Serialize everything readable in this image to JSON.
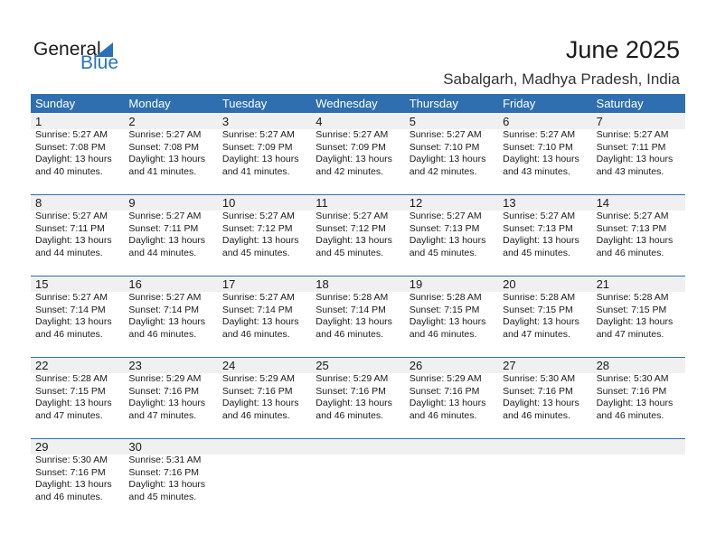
{
  "logo": {
    "general": "General",
    "blue": "Blue"
  },
  "title": "June 2025",
  "location": "Sabalgarh, Madhya Pradesh, India",
  "colors": {
    "header": "#2f6fb0",
    "brand_blue": "#2a72b5",
    "day_bar": "#f0f0f0"
  },
  "weekdays": [
    "Sunday",
    "Monday",
    "Tuesday",
    "Wednesday",
    "Thursday",
    "Friday",
    "Saturday"
  ],
  "weeks": [
    [
      {
        "day": "1",
        "sunrise": "Sunrise: 5:27 AM",
        "sunset": "Sunset: 7:08 PM",
        "daylight": "Daylight: 13 hours",
        "minutes": "and 40 minutes."
      },
      {
        "day": "2",
        "sunrise": "Sunrise: 5:27 AM",
        "sunset": "Sunset: 7:08 PM",
        "daylight": "Daylight: 13 hours",
        "minutes": "and 41 minutes."
      },
      {
        "day": "3",
        "sunrise": "Sunrise: 5:27 AM",
        "sunset": "Sunset: 7:09 PM",
        "daylight": "Daylight: 13 hours",
        "minutes": "and 41 minutes."
      },
      {
        "day": "4",
        "sunrise": "Sunrise: 5:27 AM",
        "sunset": "Sunset: 7:09 PM",
        "daylight": "Daylight: 13 hours",
        "minutes": "and 42 minutes."
      },
      {
        "day": "5",
        "sunrise": "Sunrise: 5:27 AM",
        "sunset": "Sunset: 7:10 PM",
        "daylight": "Daylight: 13 hours",
        "minutes": "and 42 minutes."
      },
      {
        "day": "6",
        "sunrise": "Sunrise: 5:27 AM",
        "sunset": "Sunset: 7:10 PM",
        "daylight": "Daylight: 13 hours",
        "minutes": "and 43 minutes."
      },
      {
        "day": "7",
        "sunrise": "Sunrise: 5:27 AM",
        "sunset": "Sunset: 7:11 PM",
        "daylight": "Daylight: 13 hours",
        "minutes": "and 43 minutes."
      }
    ],
    [
      {
        "day": "8",
        "sunrise": "Sunrise: 5:27 AM",
        "sunset": "Sunset: 7:11 PM",
        "daylight": "Daylight: 13 hours",
        "minutes": "and 44 minutes."
      },
      {
        "day": "9",
        "sunrise": "Sunrise: 5:27 AM",
        "sunset": "Sunset: 7:11 PM",
        "daylight": "Daylight: 13 hours",
        "minutes": "and 44 minutes."
      },
      {
        "day": "10",
        "sunrise": "Sunrise: 5:27 AM",
        "sunset": "Sunset: 7:12 PM",
        "daylight": "Daylight: 13 hours",
        "minutes": "and 45 minutes."
      },
      {
        "day": "11",
        "sunrise": "Sunrise: 5:27 AM",
        "sunset": "Sunset: 7:12 PM",
        "daylight": "Daylight: 13 hours",
        "minutes": "and 45 minutes."
      },
      {
        "day": "12",
        "sunrise": "Sunrise: 5:27 AM",
        "sunset": "Sunset: 7:13 PM",
        "daylight": "Daylight: 13 hours",
        "minutes": "and 45 minutes."
      },
      {
        "day": "13",
        "sunrise": "Sunrise: 5:27 AM",
        "sunset": "Sunset: 7:13 PM",
        "daylight": "Daylight: 13 hours",
        "minutes": "and 45 minutes."
      },
      {
        "day": "14",
        "sunrise": "Sunrise: 5:27 AM",
        "sunset": "Sunset: 7:13 PM",
        "daylight": "Daylight: 13 hours",
        "minutes": "and 46 minutes."
      }
    ],
    [
      {
        "day": "15",
        "sunrise": "Sunrise: 5:27 AM",
        "sunset": "Sunset: 7:14 PM",
        "daylight": "Daylight: 13 hours",
        "minutes": "and 46 minutes."
      },
      {
        "day": "16",
        "sunrise": "Sunrise: 5:27 AM",
        "sunset": "Sunset: 7:14 PM",
        "daylight": "Daylight: 13 hours",
        "minutes": "and 46 minutes."
      },
      {
        "day": "17",
        "sunrise": "Sunrise: 5:27 AM",
        "sunset": "Sunset: 7:14 PM",
        "daylight": "Daylight: 13 hours",
        "minutes": "and 46 minutes."
      },
      {
        "day": "18",
        "sunrise": "Sunrise: 5:28 AM",
        "sunset": "Sunset: 7:14 PM",
        "daylight": "Daylight: 13 hours",
        "minutes": "and 46 minutes."
      },
      {
        "day": "19",
        "sunrise": "Sunrise: 5:28 AM",
        "sunset": "Sunset: 7:15 PM",
        "daylight": "Daylight: 13 hours",
        "minutes": "and 46 minutes."
      },
      {
        "day": "20",
        "sunrise": "Sunrise: 5:28 AM",
        "sunset": "Sunset: 7:15 PM",
        "daylight": "Daylight: 13 hours",
        "minutes": "and 47 minutes."
      },
      {
        "day": "21",
        "sunrise": "Sunrise: 5:28 AM",
        "sunset": "Sunset: 7:15 PM",
        "daylight": "Daylight: 13 hours",
        "minutes": "and 47 minutes."
      }
    ],
    [
      {
        "day": "22",
        "sunrise": "Sunrise: 5:28 AM",
        "sunset": "Sunset: 7:15 PM",
        "daylight": "Daylight: 13 hours",
        "minutes": "and 47 minutes."
      },
      {
        "day": "23",
        "sunrise": "Sunrise: 5:29 AM",
        "sunset": "Sunset: 7:16 PM",
        "daylight": "Daylight: 13 hours",
        "minutes": "and 47 minutes."
      },
      {
        "day": "24",
        "sunrise": "Sunrise: 5:29 AM",
        "sunset": "Sunset: 7:16 PM",
        "daylight": "Daylight: 13 hours",
        "minutes": "and 46 minutes."
      },
      {
        "day": "25",
        "sunrise": "Sunrise: 5:29 AM",
        "sunset": "Sunset: 7:16 PM",
        "daylight": "Daylight: 13 hours",
        "minutes": "and 46 minutes."
      },
      {
        "day": "26",
        "sunrise": "Sunrise: 5:29 AM",
        "sunset": "Sunset: 7:16 PM",
        "daylight": "Daylight: 13 hours",
        "minutes": "and 46 minutes."
      },
      {
        "day": "27",
        "sunrise": "Sunrise: 5:30 AM",
        "sunset": "Sunset: 7:16 PM",
        "daylight": "Daylight: 13 hours",
        "minutes": "and 46 minutes."
      },
      {
        "day": "28",
        "sunrise": "Sunrise: 5:30 AM",
        "sunset": "Sunset: 7:16 PM",
        "daylight": "Daylight: 13 hours",
        "minutes": "and 46 minutes."
      }
    ],
    [
      {
        "day": "29",
        "sunrise": "Sunrise: 5:30 AM",
        "sunset": "Sunset: 7:16 PM",
        "daylight": "Daylight: 13 hours",
        "minutes": "and 46 minutes."
      },
      {
        "day": "30",
        "sunrise": "Sunrise: 5:31 AM",
        "sunset": "Sunset: 7:16 PM",
        "daylight": "Daylight: 13 hours",
        "minutes": "and 45 minutes."
      }
    ]
  ]
}
